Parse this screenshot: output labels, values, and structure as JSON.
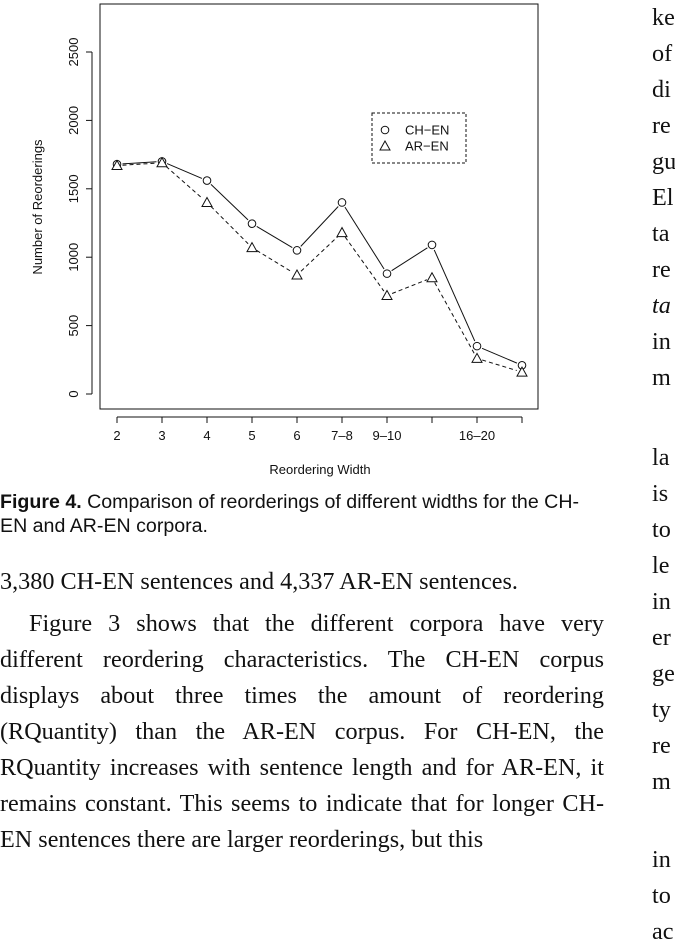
{
  "chart_data": {
    "type": "line",
    "x_tick_labels": [
      "2",
      "3",
      "4",
      "5",
      "6",
      "7–8",
      "9–10",
      "",
      "16–20",
      ""
    ],
    "xlabel": "Reordering Width",
    "ylabel": "Number of Reorderings",
    "ylim": [
      0,
      2800
    ],
    "y_ticks": [
      0,
      500,
      1000,
      1500,
      2000,
      2500
    ],
    "y_tick_labels": [
      "0",
      "500",
      "1000",
      "1500",
      "2000",
      "2500"
    ],
    "legend_position": "upper-right",
    "series": [
      {
        "name": "CH−EN",
        "marker": "circle",
        "line_style": "solid",
        "values": [
          1680,
          1700,
          1560,
          1245,
          1050,
          1400,
          880,
          1090,
          350,
          210
        ]
      },
      {
        "name": "AR−EN",
        "marker": "triangle",
        "line_style": "dashed",
        "values": [
          1670,
          1690,
          1400,
          1070,
          870,
          1180,
          720,
          850,
          260,
          160
        ]
      }
    ]
  },
  "caption": {
    "label": "Figure 4.",
    "text": " Comparison of reorderings of different widths for the CH-EN and AR-EN corpora."
  },
  "body": {
    "p1": "3,380 CH-EN sentences and 4,337 AR-EN sentences.",
    "p2": "Figure 3 shows that the different corpora have very different reordering characteristics. The CH-EN corpus displays about three times the amount of reordering (RQuantity) than the AR-EN corpus. For CH-EN, the RQuantity increases with sentence length and for AR-EN, it remains constant. This seems to indicate that for longer CH-EN sentences there are larger reorderings, but this"
  },
  "right_column": {
    "lines": [
      "ke",
      "of",
      "di",
      "re",
      "gu",
      "El",
      "ta",
      "re",
      "ta",
      "in",
      "m",
      "",
      "la",
      "is",
      "to",
      "le",
      "in",
      "er",
      "ge",
      "ty",
      "re",
      "m",
      "",
      "in",
      "to",
      "ac"
    ]
  }
}
